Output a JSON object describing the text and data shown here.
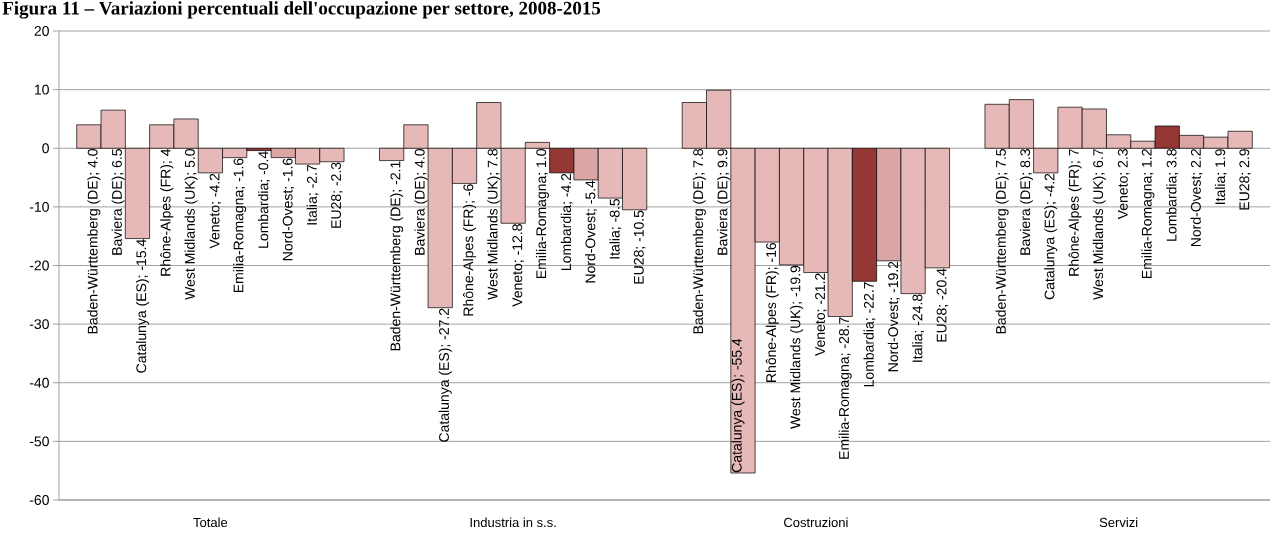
{
  "chart_data": {
    "type": "bar",
    "title": "Figura 11 – Variazioni percentuali dell'occupazione per settore, 2008-2015",
    "categories": [
      "Totale",
      "Industria in s.s.",
      "Costruzioni",
      "Servizi"
    ],
    "series": [
      {
        "color": "#e6b9b8",
        "values": [
          4.0,
          -2.1,
          7.8,
          7.5
        ],
        "value_labels": [
          "Baden-Württemberg (DE); 4.0",
          "Baden-Württemberg (DE); -2.1",
          "Baden-Württemberg (DE); 7.8",
          "Baden-Württemberg (DE); 7.5"
        ]
      },
      {
        "color": "#e6b9b8",
        "values": [
          6.5,
          4.0,
          9.9,
          8.3
        ],
        "value_labels": [
          "Baviera (DE); 6.5",
          "Baviera (DE); 4.0",
          "Baviera (DE); 9.9",
          "Baviera (DE); 8.3"
        ]
      },
      {
        "color": "#e6b9b8",
        "values": [
          -15.4,
          -27.2,
          -55.4,
          -4.2
        ],
        "value_labels": [
          "Catalunya (ES); -15.4",
          "Catalunya (ES); -27.2",
          "Catalunya (ES); -55.4",
          "Catalunya (ES); -4.2"
        ]
      },
      {
        "color": "#e6b9b8",
        "values": [
          4,
          -6,
          -16,
          7
        ],
        "value_labels": [
          "Rhône-Alpes (FR); 4",
          "Rhône-Alpes (FR); -6",
          "Rhône-Alpes (FR); -16",
          "Rhône-Alpes (FR); 7"
        ]
      },
      {
        "color": "#e6b9b8",
        "values": [
          5.0,
          7.8,
          -19.9,
          6.7
        ],
        "value_labels": [
          "West Midlands (UK); 5.0",
          "West Midlands (UK); 7.8",
          "West Midlands (UK); -19.9",
          "West Midlands (UK); 6.7"
        ]
      },
      {
        "color": "#e6b9b8",
        "values": [
          -4.2,
          -12.8,
          -21.2,
          2.3
        ],
        "value_labels": [
          "Veneto; -4.2",
          "Veneto; -12.8",
          "Veneto; -21.2",
          "Veneto; 2.3"
        ]
      },
      {
        "color": "#e6b9b8",
        "values": [
          -1.6,
          1.0,
          -28.7,
          1.2
        ],
        "value_labels": [
          "Emilia-Romagna; -1.6",
          "Emilia-Romagna; 1.0",
          "Emilia-Romagna; -28.7",
          "Emilia-Romagna; 1.2"
        ]
      },
      {
        "color": "#953735",
        "values": [
          -0.4,
          -4.2,
          -22.7,
          3.8
        ],
        "value_labels": [
          "Lombardia; -0.4",
          "Lombardia; -4.2",
          "Lombardia; -22.7",
          "Lombardia; 3.8"
        ]
      },
      {
        "color": "#d9a6a5",
        "values": [
          -1.6,
          -5.4,
          -19.2,
          2.2
        ],
        "value_labels": [
          "Nord-Ovest; -1.6",
          "Nord-Ovest; -5.4",
          "Nord-Ovest; -19.2",
          "Nord-Ovest; 2.2"
        ]
      },
      {
        "color": "#e6b9b8",
        "values": [
          -2.7,
          -8.5,
          -24.8,
          1.9
        ],
        "value_labels": [
          "Italia; -2.7",
          "Italia; -8.5",
          "Italia; -24.8",
          "Italia; 1.9"
        ]
      },
      {
        "color": "#e6b9b8",
        "values": [
          -2.3,
          -10.5,
          -20.4,
          2.9
        ],
        "value_labels": [
          "EU28; -2.3",
          "EU28; -10.5",
          "EU28; -20.4",
          "EU28; 2.9"
        ]
      }
    ],
    "ylim": [
      -60,
      20
    ],
    "yticks": [
      -60,
      -50,
      -40,
      -30,
      -20,
      -10,
      0,
      10,
      20
    ],
    "grid": "y"
  }
}
